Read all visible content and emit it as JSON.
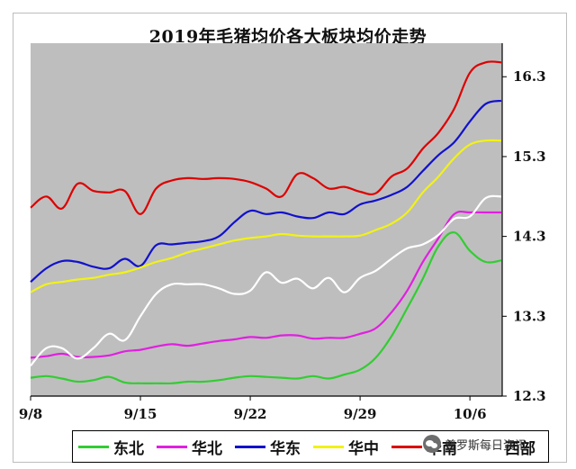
{
  "chart_data": {
    "type": "line",
    "title": "2019年毛猪均价各大板块均价走势",
    "x": [
      "9/8",
      "9/9",
      "9/10",
      "9/11",
      "9/12",
      "9/13",
      "9/14",
      "9/15",
      "9/16",
      "9/17",
      "9/18",
      "9/19",
      "9/20",
      "9/21",
      "9/22",
      "9/23",
      "9/24",
      "9/25",
      "9/26",
      "9/27",
      "9/28",
      "9/29",
      "9/30",
      "10/1",
      "10/2",
      "10/3",
      "10/4",
      "10/5",
      "10/6",
      "10/7",
      "10/8"
    ],
    "xticks": [
      "9/8",
      "9/15",
      "9/22",
      "9/29",
      "10/6"
    ],
    "yticks": [
      "12.3",
      "13.3",
      "14.3",
      "15.3",
      "16.3"
    ],
    "ylim": [
      12.3,
      16.72
    ],
    "grid": false,
    "legend_position": "bottom",
    "series": [
      {
        "name": "东北",
        "color": "#33cc33",
        "values": [
          12.53,
          12.55,
          12.52,
          12.48,
          12.5,
          12.54,
          12.47,
          12.46,
          12.46,
          12.46,
          12.48,
          12.48,
          12.5,
          12.53,
          12.55,
          12.54,
          12.53,
          12.52,
          12.55,
          12.52,
          12.57,
          12.63,
          12.78,
          13.05,
          13.4,
          13.77,
          14.18,
          14.35,
          14.12,
          13.98,
          14.0
        ]
      },
      {
        "name": "华北",
        "color": "#e020e0",
        "values": [
          12.78,
          12.8,
          12.83,
          12.79,
          12.79,
          12.81,
          12.86,
          12.88,
          12.92,
          12.95,
          12.93,
          12.96,
          12.99,
          13.01,
          13.04,
          13.03,
          13.06,
          13.06,
          13.02,
          13.03,
          13.03,
          13.08,
          13.15,
          13.35,
          13.62,
          13.98,
          14.28,
          14.58,
          14.6,
          14.6,
          14.6
        ]
      },
      {
        "name": "华东",
        "color": "#1111cc",
        "values": [
          13.73,
          13.9,
          13.99,
          13.98,
          13.92,
          13.9,
          14.02,
          13.93,
          14.19,
          14.2,
          14.22,
          14.24,
          14.3,
          14.48,
          14.62,
          14.58,
          14.6,
          14.55,
          14.53,
          14.6,
          14.58,
          14.7,
          14.75,
          14.82,
          14.92,
          15.12,
          15.32,
          15.48,
          15.74,
          15.96,
          16.0
        ]
      },
      {
        "name": "华中",
        "color": "#f2f215",
        "values": [
          13.6,
          13.7,
          13.73,
          13.76,
          13.78,
          13.82,
          13.85,
          13.91,
          13.98,
          14.03,
          14.1,
          14.15,
          14.2,
          14.25,
          14.28,
          14.3,
          14.33,
          14.31,
          14.3,
          14.3,
          14.3,
          14.31,
          14.38,
          14.46,
          14.6,
          14.85,
          15.05,
          15.28,
          15.45,
          15.5,
          15.5
        ]
      },
      {
        "name": "华南",
        "color": "#dd0000",
        "values": [
          14.66,
          14.8,
          14.65,
          14.96,
          14.87,
          14.85,
          14.87,
          14.58,
          14.9,
          15.0,
          15.03,
          15.02,
          15.03,
          15.02,
          14.98,
          14.9,
          14.8,
          15.08,
          15.03,
          14.9,
          14.92,
          14.86,
          14.84,
          15.05,
          15.15,
          15.4,
          15.6,
          15.9,
          16.35,
          16.48,
          16.48
        ]
      },
      {
        "name": "西部",
        "color": "#ffffff",
        "values": [
          12.68,
          12.9,
          12.9,
          12.77,
          12.9,
          13.08,
          13.0,
          13.3,
          13.58,
          13.7,
          13.7,
          13.7,
          13.65,
          13.58,
          13.62,
          13.85,
          13.72,
          13.77,
          13.65,
          13.78,
          13.6,
          13.78,
          13.87,
          14.02,
          14.15,
          14.2,
          14.32,
          14.52,
          14.55,
          14.78,
          14.8
        ]
      }
    ]
  },
  "watermark": {
    "text": "普罗斯每日资讯"
  }
}
